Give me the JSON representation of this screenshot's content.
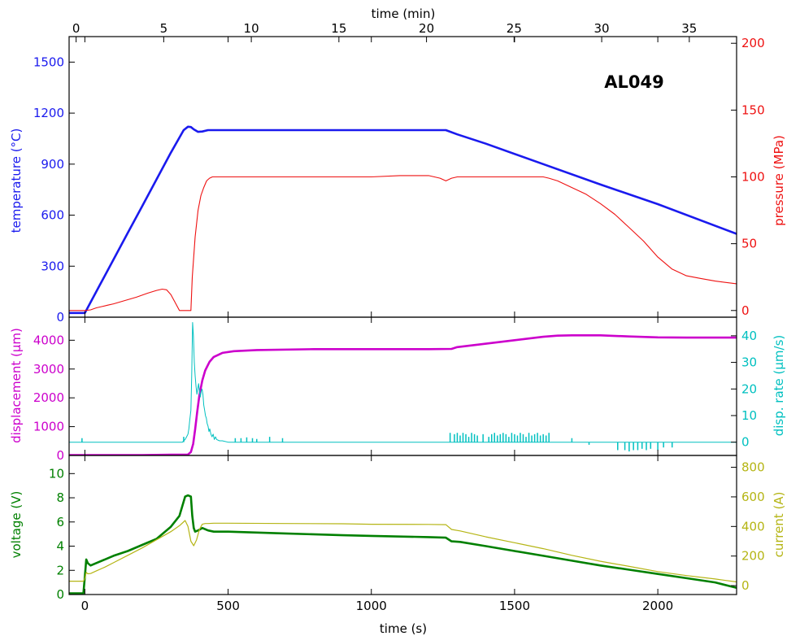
{
  "chart_data": {
    "type": "line",
    "id_label": "AL049",
    "top_axis": {
      "label": "time (min)",
      "ticks": [
        0,
        5,
        10,
        15,
        20,
        25,
        30,
        35
      ],
      "range": [
        -0.4,
        37.7
      ]
    },
    "bottom_axis": {
      "label": "time (s)",
      "ticks": [
        0,
        500,
        1000,
        1500,
        2000
      ],
      "range": [
        -55,
        2275
      ]
    },
    "panels": [
      {
        "name": "temperature-pressure",
        "left_axis": {
          "label": "temperature (°C)",
          "ticks": [
            0,
            300,
            600,
            900,
            1200,
            1500
          ],
          "range": [
            0,
            1650
          ],
          "color": "#1a1aee"
        },
        "right_axis": {
          "label": "pressure (MPa)",
          "ticks": [
            0,
            50,
            100,
            150,
            200
          ],
          "range": [
            -5,
            205
          ],
          "color": "#ee1111"
        },
        "series": [
          {
            "axis": "left",
            "color": "#1a1aee",
            "width": 2.6,
            "x": [
              -55,
              0,
              50,
              100,
              150,
              200,
              250,
              300,
              345,
              360,
              370,
              380,
              395,
              410,
              430,
              450,
              500,
              700,
              1000,
              1260,
              1300,
              1400,
              1600,
              1800,
              2000,
              2275
            ],
            "y": [
              25,
              25,
              182,
              339,
              496,
              653,
              810,
              967,
              1100,
              1120,
              1118,
              1105,
              1090,
              1092,
              1100,
              1100,
              1100,
              1100,
              1100,
              1100,
              1075,
              1020,
              900,
              780,
              665,
              490
            ]
          },
          {
            "axis": "right",
            "color": "#ee1111",
            "width": 1.1,
            "x": [
              -55,
              0,
              20,
              40,
              60,
              80,
              100,
              140,
              180,
              220,
              250,
              270,
              285,
              300,
              315,
              330,
              370,
              375,
              385,
              395,
              405,
              415,
              425,
              435,
              445,
              455,
              500,
              700,
              900,
              1000,
              1100,
              1200,
              1240,
              1260,
              1280,
              1300,
              1400,
              1500,
              1600,
              1620,
              1650,
              1700,
              1750,
              1800,
              1850,
              1900,
              1950,
              2000,
              2050,
              2100,
              2150,
              2200,
              2275
            ],
            "y": [
              0,
              0,
              0.5,
              2,
              3,
              4,
              5,
              7.5,
              10,
              13,
              15,
              16,
              15.5,
              12,
              6,
              0,
              0,
              25,
              55,
              75,
              86,
              92,
              97,
              99,
              100,
              100,
              100,
              100,
              100,
              100,
              101,
              101,
              99,
              97,
              99,
              100,
              100,
              100,
              100,
              99,
              97,
              92,
              87,
              80,
              72,
              62,
              52,
              40,
              31,
              26,
              24,
              22,
              20
            ]
          }
        ]
      },
      {
        "name": "displacement-rate",
        "left_axis": {
          "label": "displacement (μm)",
          "ticks": [
            0,
            1000,
            2000,
            3000,
            4000
          ],
          "range": [
            0,
            4800
          ],
          "color": "#cc00cc"
        },
        "right_axis": {
          "label": "disp. rate (μm/s)",
          "ticks": [
            0,
            10,
            20,
            30,
            40
          ],
          "range": [
            -5,
            47
          ],
          "color": "#00c0c0"
        },
        "series": [
          {
            "axis": "left",
            "color": "#cc00cc",
            "width": 2.6,
            "x": [
              -55,
              0,
              100,
              200,
              300,
              360,
              370,
              378,
              385,
              392,
              400,
              410,
              420,
              435,
              450,
              480,
              520,
              600,
              800,
              1000,
              1200,
              1280,
              1300,
              1400,
              1500,
              1600,
              1650,
              1700,
              1800,
              1900,
              2000,
              2100,
              2275
            ],
            "y": [
              10,
              10,
              10,
              15,
              25,
              30,
              120,
              400,
              900,
              1500,
              2100,
              2600,
              2950,
              3250,
              3420,
              3560,
              3620,
              3660,
              3690,
              3690,
              3690,
              3700,
              3760,
              3880,
              4000,
              4120,
              4160,
              4170,
              4170,
              4130,
              4100,
              4090,
              4090
            ]
          },
          {
            "axis": "right",
            "color": "#00c0c0",
            "width": 1.0,
            "x": [
              -55,
              0,
              340,
              350,
              355,
              360,
              363,
              366,
              370,
              373,
              376,
              379,
              382,
              385,
              388,
              391,
              394,
              397,
              400,
              403,
              406,
              409,
              412,
              415,
              418,
              421,
              424,
              427,
              430,
              433,
              436,
              440,
              444,
              448,
              452,
              456,
              460,
              470,
              480,
              500,
              2275
            ],
            "y": [
              0,
              0,
              0,
              1,
              2,
              3,
              5,
              8,
              12,
              25,
              45,
              40,
              30,
              25,
              21,
              18,
              20,
              22,
              19,
              17,
              19,
              20,
              18,
              14,
              12,
              10,
              9,
              7,
              6,
              4,
              5,
              3,
              2,
              3,
              1,
              2,
              1,
              0.5,
              0.5,
              0,
              0
            ],
            "spikes": [
              [
                -10,
                1.5
              ],
              [
                345,
                2
              ],
              [
                525,
                1.5
              ],
              [
                545,
                1.5
              ],
              [
                565,
                1.8
              ],
              [
                585,
                1.5
              ],
              [
                600,
                1.2
              ],
              [
                645,
                2
              ],
              [
                690,
                1.5
              ],
              [
                1275,
                3.5
              ],
              [
                1290,
                3
              ],
              [
                1300,
                3.5
              ],
              [
                1310,
                2.5
              ],
              [
                1320,
                3.5
              ],
              [
                1330,
                3
              ],
              [
                1340,
                2
              ],
              [
                1350,
                3.5
              ],
              [
                1360,
                3
              ],
              [
                1370,
                2.5
              ],
              [
                1390,
                3
              ],
              [
                1410,
                2
              ],
              [
                1420,
                3
              ],
              [
                1430,
                3.5
              ],
              [
                1440,
                2.5
              ],
              [
                1450,
                3
              ],
              [
                1460,
                3.5
              ],
              [
                1470,
                3
              ],
              [
                1480,
                2
              ],
              [
                1490,
                3.5
              ],
              [
                1500,
                3
              ],
              [
                1510,
                2.5
              ],
              [
                1520,
                3.5
              ],
              [
                1530,
                3
              ],
              [
                1540,
                2
              ],
              [
                1550,
                3.5
              ],
              [
                1560,
                2.5
              ],
              [
                1570,
                3
              ],
              [
                1580,
                3.5
              ],
              [
                1590,
                2.5
              ],
              [
                1600,
                3
              ],
              [
                1610,
                2.5
              ],
              [
                1620,
                3.5
              ],
              [
                1700,
                1.5
              ],
              [
                1760,
                -1
              ],
              [
                1860,
                -3
              ],
              [
                1885,
                -3
              ],
              [
                1900,
                -3.5
              ],
              [
                1915,
                -3
              ],
              [
                1930,
                -3
              ],
              [
                1945,
                -2.5
              ],
              [
                1960,
                -3
              ],
              [
                1975,
                -2.5
              ],
              [
                2000,
                -3
              ],
              [
                2020,
                -2
              ],
              [
                2050,
                -2
              ]
            ]
          }
        ]
      },
      {
        "name": "voltage-current",
        "left_axis": {
          "label": "voltage (V)",
          "ticks": [
            0,
            2,
            4,
            6,
            8,
            10
          ],
          "range": [
            0,
            11.5
          ],
          "color": "#008000"
        },
        "right_axis": {
          "label": "current (A)",
          "ticks": [
            0,
            200,
            400,
            600,
            800
          ],
          "range": [
            -60,
            880
          ],
          "color": "#b5b515"
        },
        "series": [
          {
            "axis": "left",
            "color": "#008000",
            "width": 2.6,
            "x": [
              -55,
              -5,
              0,
              5,
              10,
              20,
              40,
              70,
              100,
              150,
              200,
              250,
              300,
              330,
              350,
              360,
              370,
              375,
              380,
              385,
              395,
              410,
              430,
              450,
              500,
              700,
              900,
              1000,
              1200,
              1260,
              1280,
              1310,
              1400,
              1500,
              1600,
              1700,
              1800,
              1900,
              2000,
              2100,
              2200,
              2275
            ],
            "y": [
              0.1,
              0.1,
              1.5,
              2.9,
              2.6,
              2.4,
              2.6,
              2.9,
              3.2,
              3.6,
              4.1,
              4.6,
              5.6,
              6.5,
              8.1,
              8.2,
              8.1,
              6.5,
              5.5,
              5.2,
              5.3,
              5.5,
              5.3,
              5.2,
              5.2,
              5.05,
              4.9,
              4.85,
              4.75,
              4.7,
              4.4,
              4.35,
              4.0,
              3.6,
              3.2,
              2.8,
              2.4,
              2.05,
              1.7,
              1.35,
              1.0,
              0.55
            ]
          },
          {
            "axis": "right",
            "color": "#b5b515",
            "width": 1.2,
            "x": [
              -55,
              -5,
              0,
              5,
              10,
              20,
              40,
              70,
              100,
              150,
              200,
              250,
              300,
              330,
              350,
              360,
              370,
              380,
              390,
              400,
              410,
              420,
              430,
              450,
              500,
              700,
              900,
              1000,
              1200,
              1260,
              1280,
              1310,
              1400,
              1500,
              1600,
              1700,
              1800,
              1900,
              2000,
              2100,
              2200,
              2275
            ],
            "y": [
              30,
              30,
              50,
              90,
              80,
              82,
              100,
              125,
              155,
              205,
              255,
              310,
              365,
              405,
              440,
              400,
              300,
              270,
              310,
              380,
              415,
              420,
              420,
              422,
              422,
              420,
              418,
              415,
              414,
              412,
              380,
              370,
              330,
              290,
              250,
              205,
              165,
              130,
              95,
              68,
              45,
              25
            ]
          }
        ]
      }
    ]
  }
}
